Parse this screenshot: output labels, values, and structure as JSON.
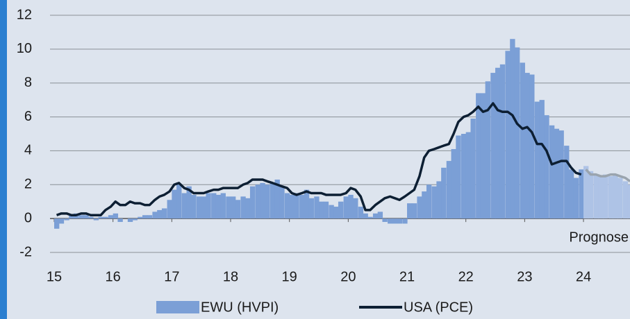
{
  "chart_data": {
    "type": "bar_line",
    "x": [
      15.0,
      15.08,
      15.17,
      15.25,
      15.33,
      15.42,
      15.5,
      15.58,
      15.67,
      15.75,
      15.83,
      15.92,
      16.0,
      16.08,
      16.17,
      16.25,
      16.33,
      16.42,
      16.5,
      16.58,
      16.67,
      16.75,
      16.83,
      16.92,
      17.0,
      17.08,
      17.17,
      17.25,
      17.33,
      17.42,
      17.5,
      17.58,
      17.67,
      17.75,
      17.83,
      17.92,
      18.0,
      18.08,
      18.17,
      18.25,
      18.33,
      18.42,
      18.5,
      18.58,
      18.67,
      18.75,
      18.83,
      18.92,
      19.0,
      19.08,
      19.17,
      19.25,
      19.33,
      19.42,
      19.5,
      19.58,
      19.67,
      19.75,
      19.83,
      19.92,
      20.0,
      20.08,
      20.17,
      20.25,
      20.33,
      20.42,
      20.5,
      20.58,
      20.67,
      20.75,
      20.83,
      20.92,
      21.0,
      21.08,
      21.17,
      21.25,
      21.33,
      21.42,
      21.5,
      21.58,
      21.67,
      21.75,
      21.83,
      21.92,
      22.0,
      22.08,
      22.17,
      22.25,
      22.33,
      22.42,
      22.5,
      22.58,
      22.67,
      22.75,
      22.83,
      22.92,
      23.0,
      23.08,
      23.17,
      23.25,
      23.33,
      23.42,
      23.5,
      23.58,
      23.67,
      23.75,
      23.83,
      23.92,
      24.0,
      24.08,
      24.17,
      24.25,
      24.33,
      24.42,
      24.5,
      24.58,
      24.67,
      24.75
    ],
    "series": [
      {
        "name": "EWU (HVPI)",
        "kind": "bar",
        "color": "#7b9fd6",
        "forecast_color": "#aec3e6",
        "values": [
          -0.6,
          -0.3,
          -0.1,
          0.2,
          0.3,
          0.2,
          0.2,
          0.1,
          -0.1,
          0.1,
          0.1,
          0.2,
          0.3,
          -0.2,
          0.0,
          -0.2,
          -0.1,
          0.1,
          0.2,
          0.2,
          0.4,
          0.5,
          0.6,
          1.1,
          1.7,
          2.0,
          1.5,
          1.9,
          1.4,
          1.3,
          1.3,
          1.5,
          1.5,
          1.4,
          1.5,
          1.3,
          1.3,
          1.1,
          1.3,
          1.2,
          1.9,
          2.0,
          2.1,
          2.0,
          2.1,
          2.3,
          1.9,
          1.5,
          1.4,
          1.5,
          1.4,
          1.7,
          1.2,
          1.3,
          1.0,
          1.0,
          0.8,
          0.7,
          1.0,
          1.3,
          1.4,
          1.2,
          0.7,
          0.3,
          0.1,
          0.3,
          0.4,
          -0.2,
          -0.3,
          -0.3,
          -0.3,
          -0.3,
          0.9,
          0.9,
          1.3,
          1.6,
          2.0,
          1.9,
          2.2,
          3.0,
          3.4,
          4.1,
          4.9,
          5.0,
          5.1,
          5.9,
          7.4,
          7.4,
          8.1,
          8.6,
          8.9,
          9.1,
          9.9,
          10.6,
          10.1,
          9.2,
          8.6,
          8.5,
          6.9,
          7.0,
          6.1,
          5.5,
          5.3,
          5.2,
          4.3,
          2.9,
          2.4,
          2.9,
          3.1,
          2.8,
          2.6,
          2.5,
          2.6,
          2.5,
          2.6,
          2.4,
          2.2,
          2.0
        ]
      },
      {
        "name": "USA (PCE)",
        "kind": "line",
        "color": "#0d1f33",
        "forecast_color": "#9aa4ae",
        "values": [
          0.2,
          0.3,
          0.3,
          0.2,
          0.2,
          0.3,
          0.3,
          0.2,
          0.2,
          0.2,
          0.5,
          0.7,
          1.0,
          0.8,
          0.8,
          1.0,
          0.9,
          0.9,
          0.8,
          0.8,
          1.1,
          1.3,
          1.4,
          1.6,
          2.0,
          2.1,
          1.8,
          1.7,
          1.5,
          1.5,
          1.5,
          1.6,
          1.7,
          1.7,
          1.8,
          1.8,
          1.8,
          1.8,
          2.0,
          2.1,
          2.3,
          2.3,
          2.3,
          2.2,
          2.1,
          2.0,
          1.9,
          1.8,
          1.5,
          1.4,
          1.5,
          1.6,
          1.5,
          1.5,
          1.5,
          1.4,
          1.4,
          1.4,
          1.4,
          1.5,
          1.8,
          1.7,
          1.3,
          0.5,
          0.5,
          0.8,
          1.0,
          1.2,
          1.3,
          1.2,
          1.1,
          1.3,
          1.5,
          1.7,
          2.5,
          3.6,
          4.0,
          4.1,
          4.2,
          4.3,
          4.4,
          5.0,
          5.7,
          6.0,
          6.1,
          6.3,
          6.6,
          6.3,
          6.4,
          6.8,
          6.4,
          6.3,
          6.3,
          6.1,
          5.6,
          5.3,
          5.4,
          5.1,
          4.4,
          4.4,
          4.0,
          3.2,
          3.3,
          3.4,
          3.4,
          3.0,
          2.7,
          2.6,
          2.9,
          2.6,
          2.6,
          2.5,
          2.5,
          2.6,
          2.6,
          2.5,
          2.4,
          2.2
        ]
      }
    ],
    "forecast_from": 24,
    "annotation": "Prognose",
    "xlim": [
      15,
      24.85
    ],
    "xticks": [
      15,
      16,
      17,
      18,
      19,
      20,
      21,
      22,
      23,
      24
    ],
    "ylim": [
      -2,
      12
    ],
    "yticks": [
      -2,
      0,
      2,
      4,
      6,
      8,
      10,
      12
    ],
    "grid": true,
    "legend": "bottom"
  }
}
